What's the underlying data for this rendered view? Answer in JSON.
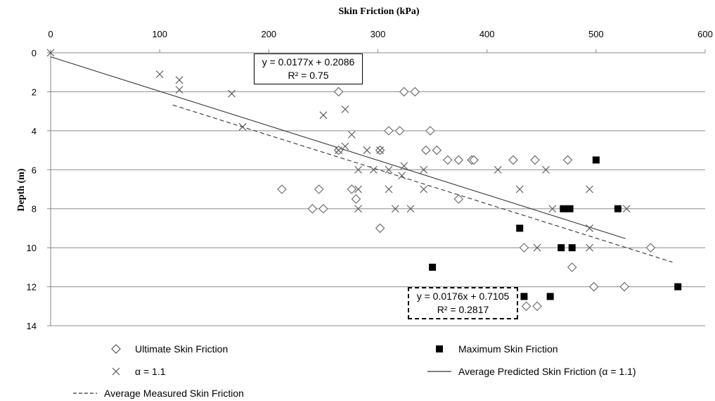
{
  "chart_data": {
    "type": "scatter",
    "xlabel": "Skin Friction (kPa)",
    "ylabel": "Depth (m)",
    "xlim": [
      0,
      600
    ],
    "ylim": [
      0,
      14
    ],
    "y_inverted": true,
    "x_axis_position": "top",
    "x_ticks": [
      "0",
      "100",
      "200",
      "300",
      "400",
      "500",
      "600"
    ],
    "y_ticks": [
      "0",
      "2",
      "4",
      "6",
      "8",
      "10",
      "12",
      "14"
    ],
    "grid": "horizontal",
    "legend_position": "bottom",
    "series": [
      {
        "name": "Ultimate Skin Friction",
        "marker": "diamond-open",
        "points": [
          [
            264,
            2
          ],
          [
            324,
            2
          ],
          [
            334,
            2
          ],
          [
            310,
            4
          ],
          [
            320,
            4
          ],
          [
            348,
            4
          ],
          [
            264,
            5
          ],
          [
            302,
            5
          ],
          [
            344,
            5
          ],
          [
            354,
            5
          ],
          [
            364,
            5.5
          ],
          [
            374,
            5.5
          ],
          [
            386,
            5.5
          ],
          [
            388,
            5.5
          ],
          [
            424,
            5.5
          ],
          [
            444,
            5.5
          ],
          [
            474,
            5.5
          ],
          [
            212,
            7
          ],
          [
            246,
            7
          ],
          [
            276,
            7
          ],
          [
            280,
            7.5
          ],
          [
            374,
            7.5
          ],
          [
            240,
            8
          ],
          [
            250,
            8
          ],
          [
            302,
            9
          ],
          [
            434,
            10
          ],
          [
            550,
            10
          ],
          [
            478,
            11
          ],
          [
            498,
            12
          ],
          [
            526,
            12
          ],
          [
            436,
            13
          ],
          [
            446,
            13
          ]
        ]
      },
      {
        "name": "Maximum Skin Friction",
        "marker": "square-filled",
        "points": [
          [
            500,
            5.5
          ],
          [
            470,
            8
          ],
          [
            476,
            8
          ],
          [
            520,
            8
          ],
          [
            430,
            9
          ],
          [
            468,
            10
          ],
          [
            478,
            10
          ],
          [
            350,
            11
          ],
          [
            434,
            12.5
          ],
          [
            458,
            12.5
          ],
          [
            575,
            12
          ]
        ]
      },
      {
        "name": "α = 1.1",
        "marker": "x",
        "points": [
          [
            0,
            0
          ],
          [
            100,
            1.1
          ],
          [
            118,
            1.4
          ],
          [
            118,
            1.9
          ],
          [
            166,
            2.1
          ],
          [
            250,
            3.2
          ],
          [
            270,
            2.9
          ],
          [
            276,
            4.2
          ],
          [
            176,
            3.8
          ],
          [
            264,
            5
          ],
          [
            270,
            4.8
          ],
          [
            290,
            5
          ],
          [
            302,
            5
          ],
          [
            282,
            6
          ],
          [
            296,
            6
          ],
          [
            310,
            6
          ],
          [
            324,
            5.8
          ],
          [
            322,
            6.3
          ],
          [
            342,
            6
          ],
          [
            410,
            6
          ],
          [
            454,
            6
          ],
          [
            282,
            7
          ],
          [
            310,
            7
          ],
          [
            342,
            7
          ],
          [
            430,
            7
          ],
          [
            494,
            7
          ],
          [
            282,
            8
          ],
          [
            316,
            8
          ],
          [
            330,
            8
          ],
          [
            460,
            8
          ],
          [
            528,
            8
          ],
          [
            494,
            9
          ],
          [
            446,
            10
          ],
          [
            494,
            10
          ]
        ]
      },
      {
        "name": "Average Predicted Skin Friction (α = 1.1)",
        "style": "solid-line",
        "points": [
          [
            0,
            0.2086
          ],
          [
            527,
            9.53
          ]
        ]
      },
      {
        "name": "Average Measured Skin Friction",
        "style": "dashed-line",
        "points": [
          [
            112,
            2.68
          ],
          [
            570,
            10.74
          ]
        ]
      }
    ],
    "annotations": [
      {
        "id": "predicted",
        "line1": "y = 0.0177x + 0.2086",
        "line2": "R² = 0.75"
      },
      {
        "id": "measured",
        "line1": "y = 0.0176x + 0.7105",
        "line2": "R² = 0.2817"
      }
    ]
  }
}
